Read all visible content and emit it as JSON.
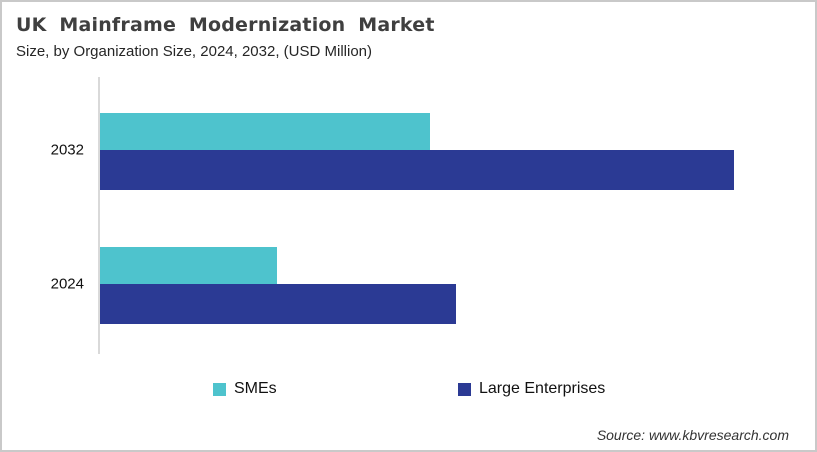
{
  "header": {
    "title": "UK Mainframe Modernization Market",
    "subtitle": "Size, by Organization Size, 2024, 2032, (USD Million)"
  },
  "footer": {
    "source": "Source: www.kbvresearch.com"
  },
  "colors": {
    "smes": "#4EC3CD",
    "large_enterprises": "#2B3A94",
    "axis_line": "#D9D9D9",
    "title_text": "#3F3F3F",
    "border": "#C9C9C9"
  },
  "chart_data": {
    "type": "bar",
    "orientation": "horizontal",
    "title": "UK Mainframe Modernization Market",
    "subtitle": "Size, by Organization Size, 2024, 2032, (USD Million)",
    "categories": [
      "2032",
      "2024"
    ],
    "series": [
      {
        "name": "SMEs",
        "color": "#4EC3CD",
        "values": [
          330,
          177
        ]
      },
      {
        "name": "Large Enterprises",
        "color": "#2B3A94",
        "values": [
          634,
          356
        ]
      }
    ],
    "xlabel": "",
    "ylabel": "",
    "xlim": [
      0,
      700
    ],
    "grid": false,
    "axis_values_labeled": false,
    "values_note": "No numeric axis shown in chart; values are relative magnitudes estimated from bar lengths",
    "legend_position": "bottom"
  }
}
